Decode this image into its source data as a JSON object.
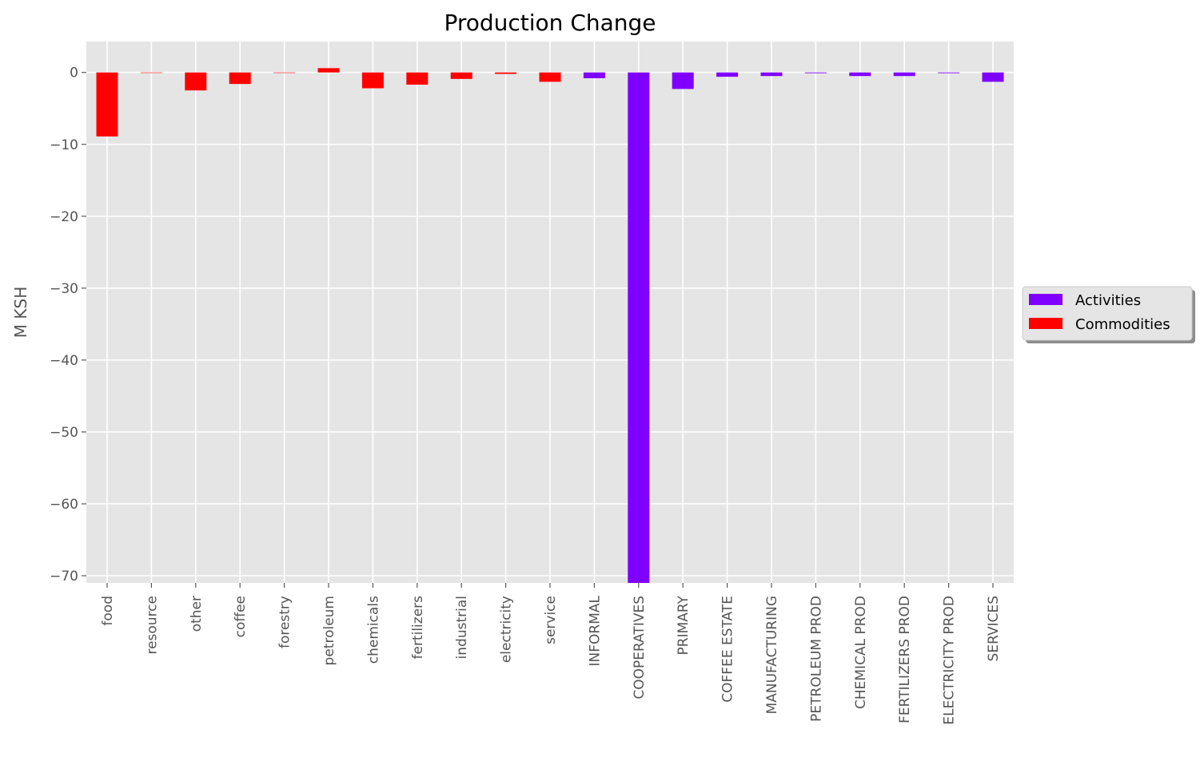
{
  "chart_data": {
    "type": "bar",
    "title": "Production Change",
    "xlabel": "",
    "ylabel": "M KSH",
    "ylim": [
      -71,
      4.3
    ],
    "yticks": [
      0,
      -10,
      -20,
      -30,
      -40,
      -50,
      -60,
      -70
    ],
    "ytick_labels": [
      "0",
      "−10",
      "−20",
      "−30",
      "−40",
      "−50",
      "−60",
      "−70"
    ],
    "grid": true,
    "legend_position": "center-right",
    "categories": [
      "food",
      "resource",
      "other",
      "coffee",
      "forestry",
      "petroleum",
      "chemicals",
      "fertilizers",
      "industrial",
      "electricity",
      "service",
      "INFORMAL",
      "COOPERATIVES",
      "PRIMARY",
      "COFFEE ESTATE",
      "MANUFACTURING",
      "PETROLEUM PROD",
      "CHEMICAL PROD",
      "FERTILIZERS PROD",
      "ELECTRICITY PROD",
      "SERVICES"
    ],
    "series": [
      {
        "name": "Activities",
        "color": "#8000ff",
        "values": [
          null,
          null,
          null,
          null,
          null,
          null,
          null,
          null,
          null,
          null,
          null,
          -0.8,
          -71,
          -2.3,
          -0.6,
          -0.5,
          -0.1,
          -0.5,
          -0.5,
          -0.1,
          -1.3
        ]
      },
      {
        "name": "Commodities",
        "color": "#ff0000",
        "values": [
          -8.9,
          0,
          -2.5,
          -1.6,
          0,
          0.6,
          -2.2,
          -1.7,
          -0.9,
          -0.2,
          -1.3,
          null,
          null,
          null,
          null,
          null,
          null,
          null,
          null,
          null,
          null
        ]
      }
    ]
  }
}
